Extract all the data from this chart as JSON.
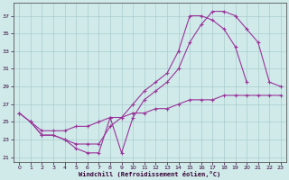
{
  "xlabel": "Windchill (Refroidissement éolien,°C)",
  "bg_color": "#d0eaea",
  "line_color": "#993399",
  "grid_color": "#aacccc",
  "xlim": [
    -0.5,
    23.5
  ],
  "ylim": [
    20.5,
    38.5
  ],
  "xticks": [
    0,
    1,
    2,
    3,
    4,
    5,
    6,
    7,
    8,
    9,
    10,
    11,
    12,
    13,
    14,
    15,
    16,
    17,
    18,
    19,
    20,
    21,
    22,
    23
  ],
  "yticks": [
    21,
    23,
    25,
    27,
    29,
    31,
    33,
    35,
    37
  ],
  "curve1_x": [
    0,
    1,
    2,
    3,
    4,
    5,
    6,
    7,
    8,
    9,
    10,
    11,
    12,
    13,
    14,
    15,
    16,
    17,
    18,
    19,
    20,
    21,
    22,
    23
  ],
  "curve1_y": [
    26.0,
    25.0,
    23.5,
    23.5,
    23.0,
    22.0,
    21.5,
    21.5,
    25.5,
    21.5,
    25.5,
    27.5,
    28.5,
    29.5,
    31.0,
    34.0,
    36.0,
    37.5,
    37.5,
    37.0,
    35.5,
    34.0,
    29.5,
    29.0
  ],
  "curve2_x": [
    1,
    2,
    3,
    4,
    5,
    6,
    7,
    8,
    9,
    10,
    11,
    12,
    13,
    14,
    15,
    16,
    17,
    18,
    19,
    20
  ],
  "curve2_y": [
    25.0,
    23.5,
    23.5,
    23.0,
    22.5,
    22.5,
    22.5,
    24.5,
    25.5,
    27.0,
    28.5,
    29.5,
    30.5,
    33.0,
    37.0,
    37.0,
    36.5,
    35.5,
    33.5,
    29.5
  ],
  "curve3_x": [
    0,
    1,
    2,
    3,
    4,
    5,
    6,
    7,
    8,
    9,
    10,
    11,
    12,
    13,
    14,
    15,
    16,
    17,
    18,
    19,
    20,
    21,
    22,
    23
  ],
  "curve3_y": [
    26.0,
    25.0,
    24.0,
    24.0,
    24.0,
    24.5,
    24.5,
    25.0,
    25.5,
    25.5,
    26.0,
    26.0,
    26.5,
    26.5,
    27.0,
    27.5,
    27.5,
    27.5,
    28.0,
    28.0,
    28.0,
    28.0,
    28.0,
    28.0
  ]
}
